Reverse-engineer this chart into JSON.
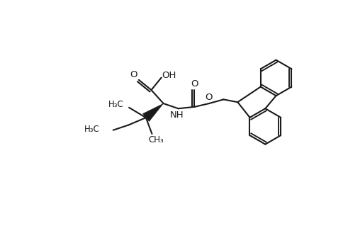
{
  "bg_color": "#ffffff",
  "line_color": "#1a1a1a",
  "line_width": 1.5,
  "font_size": 8.5,
  "figsize": [
    4.84,
    3.36
  ],
  "dpi": 100,
  "xlim": [
    0,
    10
  ],
  "ylim": [
    0,
    7
  ]
}
